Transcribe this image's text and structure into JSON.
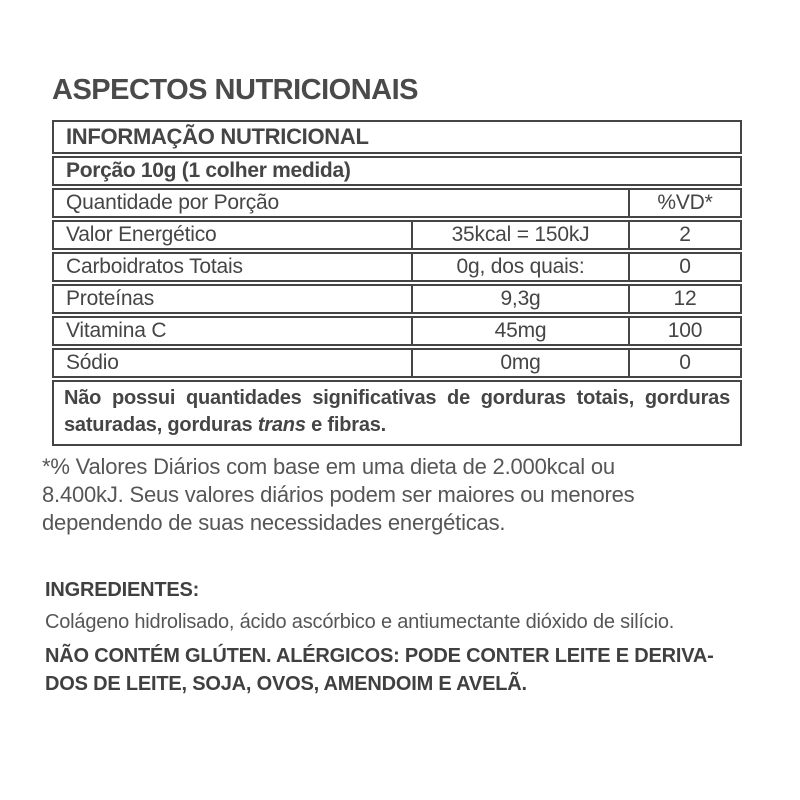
{
  "page_title": "ASPECTOS NUTRICIONAIS",
  "colors": {
    "text": "#454545",
    "border": "#454545",
    "muted_text": "#565656",
    "background": "#ffffff"
  },
  "table": {
    "header": "INFORMAÇÃO NUTRICIONAL",
    "serving": "Porção 10g (1 colher medida)",
    "quantity_header": "Quantidade por Porção",
    "vd_header": "%VD*",
    "rows": [
      {
        "label": "Valor Energético",
        "value": "35kcal = 150kJ",
        "vd": "2"
      },
      {
        "label": "Carboidratos Totais",
        "value": "0g, dos quais:",
        "vd": "0"
      },
      {
        "label": "Proteínas",
        "value": "9,3g",
        "vd": "12"
      },
      {
        "label": "Vitamina C",
        "value": "45mg",
        "vd": "100"
      },
      {
        "label": "Sódio",
        "value": "0mg",
        "vd": "0"
      }
    ],
    "note": {
      "part1": "Não possui quantidades significativas de gorduras totais, gorduras saturadas, gorduras ",
      "italic": "trans",
      "part2": " e fibras."
    }
  },
  "footnote": {
    "line1": "*% Valores Diários com base em uma dieta de 2.000kcal ou",
    "line2": "8.400kJ. Seus valores diários podem ser maiores ou menores",
    "line3": "dependendo de suas necessidades energéticas."
  },
  "ingredients": {
    "title": "INGREDIENTES:",
    "description": "Colágeno hidrolisado, ácido ascórbico e antiumectante dióxido de silício.",
    "allergen_line1": "NÃO CONTÉM GLÚTEN. ALÉRGICOS: PODE CONTER LEITE E DERIVA-",
    "allergen_line2": "DOS DE LEITE, SOJA, OVOS, AMENDOIM E AVELÃ."
  }
}
